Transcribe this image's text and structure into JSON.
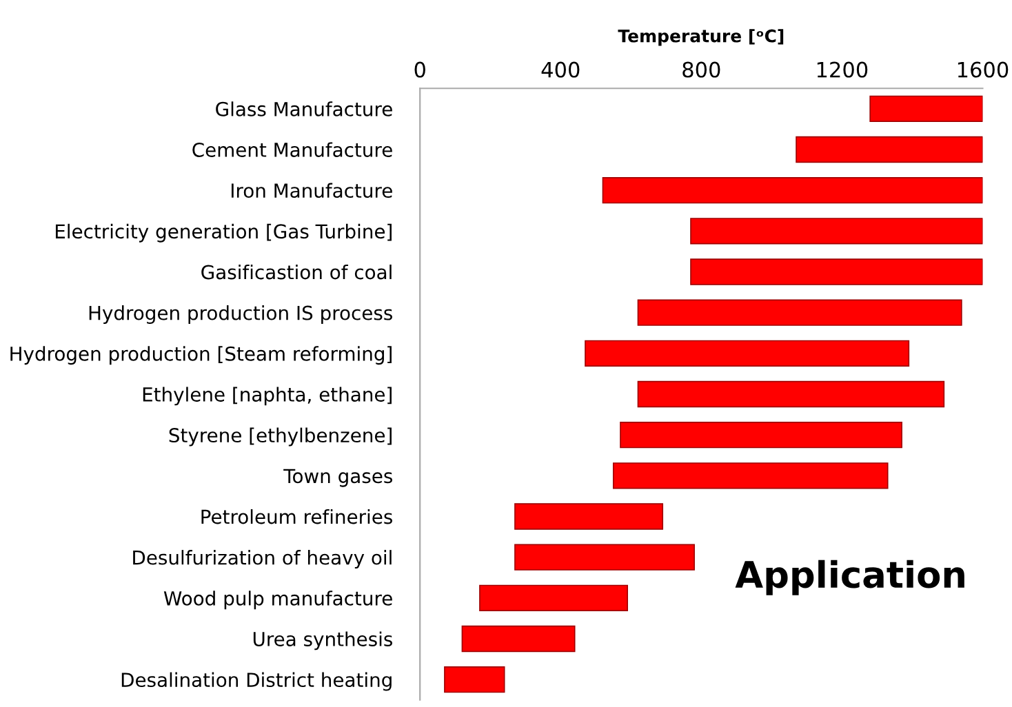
{
  "chart_data": {
    "type": "bar",
    "orientation": "horizontal",
    "xlabel": "Temperature [ᵒC]",
    "categories": [
      "Glass Manufacture",
      "Cement Manufacture",
      "Iron Manufacture",
      "Electricity generation [Gas Turbine]",
      "Gasificastion of coal",
      "Hydrogen production IS process",
      "Hydrogen production [Steam reforming]",
      "Ethylene [naphta, ethane]",
      "Styrene [ethylbenzene]",
      "Town gases",
      "Petroleum refineries",
      "Desulfurization of heavy oil",
      "Wood pulp manufacture",
      "Urea synthesis",
      "Desalination District heating"
    ],
    "base": [
      1280,
      1070,
      520,
      770,
      770,
      620,
      470,
      620,
      570,
      550,
      270,
      270,
      170,
      120,
      70
    ],
    "values": [
      320,
      530,
      1080,
      830,
      830,
      920,
      920,
      870,
      800,
      780,
      420,
      510,
      420,
      320,
      170
    ],
    "color": "#ff0000",
    "xlim": [
      0,
      1600
    ],
    "xticks": [
      0,
      400,
      800,
      1200,
      1600
    ],
    "grid": false,
    "annotations": [
      "Application"
    ]
  }
}
